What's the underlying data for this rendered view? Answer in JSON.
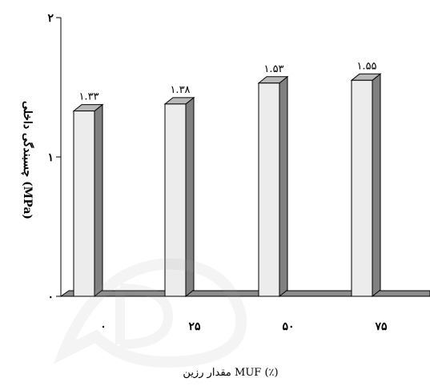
{
  "chart_data": {
    "type": "bar",
    "title": "",
    "xlabel": "مقدار رزین MUF (٪)",
    "ylabel": "چسبندگی داخلی (MPa)",
    "categories": [
      "۰",
      "۲۵",
      "۵۰",
      "۷۵"
    ],
    "values": [
      1.33,
      1.38,
      1.53,
      1.55
    ],
    "value_labels": [
      "۱.۳۳",
      "۱.۳۸",
      "۱.۵۳",
      "۱.۵۵"
    ],
    "ylim": [
      0,
      2
    ],
    "y_ticks": [
      {
        "value": 0,
        "label": "۰"
      },
      {
        "value": 1,
        "label": "۱"
      },
      {
        "value": 2,
        "label": "۲"
      }
    ],
    "grid": false,
    "legend": "none",
    "style": "3d-bar",
    "colors": {
      "bar_front": "#ececec",
      "bar_top": "#b8b8b8",
      "bar_side": "#808080",
      "floor": "#8c8c8c",
      "axis": "#000000",
      "watermark": "#d6d6d6"
    }
  }
}
